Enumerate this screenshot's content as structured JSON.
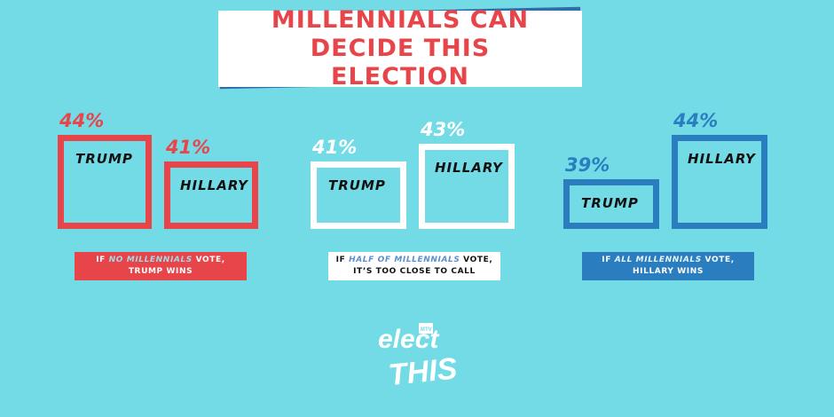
{
  "title": "MILLENNIALS CAN DECIDE THIS ELECTION",
  "colors": {
    "background": "#72dbe6",
    "red": "#e8454a",
    "white": "#ffffff",
    "blue": "#2a7ec0",
    "title_shadow": "#2f6fa8"
  },
  "chart_data": [
    {
      "type": "bar",
      "categories": [
        "TRUMP",
        "HILLARY"
      ],
      "values": [
        44,
        41
      ],
      "value_labels": [
        "44%",
        "41%"
      ],
      "color": "#e8454a",
      "caption_pre": "IF ",
      "caption_em": "NO MILLENNIALS",
      "caption_post": " VOTE,",
      "caption_line2": "TRUMP WINS"
    },
    {
      "type": "bar",
      "categories": [
        "TRUMP",
        "HILLARY"
      ],
      "values": [
        41,
        43
      ],
      "value_labels": [
        "41%",
        "43%"
      ],
      "color": "#ffffff",
      "caption_pre": "IF ",
      "caption_em": "HALF OF MILLENNIALS",
      "caption_post": " VOTE,",
      "caption_line2": "IT’S TOO CLOSE TO CALL"
    },
    {
      "type": "bar",
      "categories": [
        "TRUMP",
        "HILLARY"
      ],
      "values": [
        39,
        44
      ],
      "value_labels": [
        "39%",
        "44%"
      ],
      "color": "#2a7ec0",
      "caption_pre": "IF ",
      "caption_em": "ALL MILLENNIALS",
      "caption_post": " VOTE,",
      "caption_line2": "HILLARY  WINS"
    }
  ],
  "logo": {
    "line1": "elect",
    "line2": "THIS",
    "badge": "MTV"
  }
}
